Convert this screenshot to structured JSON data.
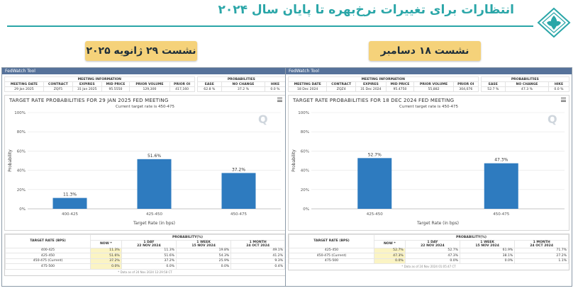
{
  "header": {
    "title": "انتظارات برای تغییرات نرخ‌بهره تا پایان سال ۲۰۲۴",
    "colors": {
      "title": "#2aa6a8",
      "badge": "#f5d27a",
      "bar": "#2e7bbf",
      "toolbar": "#56729a"
    }
  },
  "badges": {
    "left": "نشست ۲۹ ژانویه ۲۰۲۵",
    "right": "نشست ۱۸ دسامبر ۲۰۲۴"
  },
  "panels": [
    {
      "toolbar_label": "FedWatch Tool",
      "meeting_info_header": "MEETING INFORMATION",
      "probabilities_header": "PROBABILITIES",
      "meeting_cols": [
        "MEETING DATE",
        "CONTRACT",
        "EXPIRES",
        "MID PRICE",
        "PRIOR VOLUME",
        "PRIOR OI"
      ],
      "meeting_vals": [
        "29 Jan 2025",
        "ZQF5",
        "31 Jan 2025",
        "95.5550",
        "129,300",
        "417,160"
      ],
      "prob_cols": [
        "EASE",
        "NO CHANGE",
        "HIKE"
      ],
      "prob_vals": [
        "62.8 %",
        "37.2 %",
        "0.0 %"
      ],
      "chart": {
        "title": "TARGET RATE PROBABILITIES FOR 29 JAN 2025 FED MEETING",
        "subtitle": "Current target rate is 450-475",
        "watermark": "Q",
        "ylabel": "Probability",
        "xlabel": "Target Rate (in bps)",
        "yticks": [
          "0%",
          "20%",
          "40%",
          "60%",
          "80%",
          "100%"
        ]
      },
      "table": {
        "col_target": "TARGET RATE (BPS)",
        "col_prob": "PROBABILITY(%)",
        "col_now": "NOW *",
        "col_1day": "1 DAY",
        "col_1day_date": "22 NOV 2024",
        "col_1week": "1 WEEK",
        "col_1week_date": "15 NOV 2024",
        "col_1month": "1 MONTH",
        "col_1month_date": "24 OCT 2024",
        "rows": [
          [
            "400-425",
            "11.3%",
            "11.3%",
            "19.8%",
            "49.1%"
          ],
          [
            "425-450",
            "51.6%",
            "51.6%",
            "54.3%",
            "41.2%"
          ],
          [
            "450-475 (Current)",
            "37.2%",
            "37.2%",
            "25.9%",
            "9.3%"
          ],
          [
            "475-500",
            "0.0%",
            "0.0%",
            "0.0%",
            "0.4%"
          ]
        ],
        "footnote": "* Data as of 24 Nov 2024 12:29:58 CT"
      }
    },
    {
      "toolbar_label": "FedWatch Tool",
      "meeting_info_header": "MEETING INFORMATION",
      "probabilities_header": "PROBABILITIES",
      "meeting_cols": [
        "MEETING DATE",
        "CONTRACT",
        "EXPIRES",
        "MID PRICE",
        "PRIOR VOLUME",
        "PRIOR OI"
      ],
      "meeting_vals": [
        "18 Dec 2024",
        "ZQZ4",
        "31 Dec 2024",
        "95.4750",
        "55,882",
        "304,076"
      ],
      "prob_cols": [
        "EASE",
        "NO CHANGE",
        "HIKE"
      ],
      "prob_vals": [
        "52.7 %",
        "47.3 %",
        "0.0 %"
      ],
      "chart": {
        "title": "TARGET RATE PROBABILITIES FOR 18 DEC 2024 FED MEETING",
        "subtitle": "Current target rate is 450-475",
        "watermark": "Q",
        "ylabel": "Probability",
        "xlabel": "Target Rate (in bps)",
        "yticks": [
          "0%",
          "20%",
          "40%",
          "60%",
          "80%",
          "100%"
        ]
      },
      "table": {
        "col_target": "TARGET RATE (BPS)",
        "col_prob": "PROBABILITY(%)",
        "col_now": "NOW *",
        "col_1day": "1 DAY",
        "col_1day_date": "22 NOV 2024",
        "col_1week": "1 WEEK",
        "col_1week_date": "15 NOV 2024",
        "col_1month": "1 MONTH",
        "col_1month_date": "24 OCT 2024",
        "rows": [
          [
            "425-450",
            "52.7%",
            "52.7%",
            "61.9%",
            "71.7%"
          ],
          [
            "450-475 (Current)",
            "47.3%",
            "47.3%",
            "38.1%",
            "27.2%"
          ],
          [
            "475-500",
            "0.0%",
            "0.0%",
            "0.0%",
            "1.1%"
          ]
        ],
        "footnote": "* Data as of 24 Nov 2024 01:05:47 CT"
      }
    }
  ],
  "chart_data": [
    {
      "type": "bar",
      "title": "TARGET RATE PROBABILITIES FOR 29 JAN 2025 FED MEETING",
      "subtitle": "Current target rate is 450-475",
      "categories": [
        "400-425",
        "425-450",
        "450-475"
      ],
      "values": [
        11.3,
        51.6,
        37.2
      ],
      "labels": [
        "11.3%",
        "51.6%",
        "37.2%"
      ],
      "xlabel": "Target Rate (in bps)",
      "ylabel": "Probability",
      "ylim": [
        0,
        100
      ],
      "grid": true
    },
    {
      "type": "bar",
      "title": "TARGET RATE PROBABILITIES FOR 18 DEC 2024 FED MEETING",
      "subtitle": "Current target rate is 450-475",
      "categories": [
        "425-450",
        "450-475"
      ],
      "values": [
        52.7,
        47.3
      ],
      "labels": [
        "52.7%",
        "47.3%"
      ],
      "xlabel": "Target Rate (in bps)",
      "ylabel": "Probability",
      "ylim": [
        0,
        100
      ],
      "grid": true
    }
  ]
}
